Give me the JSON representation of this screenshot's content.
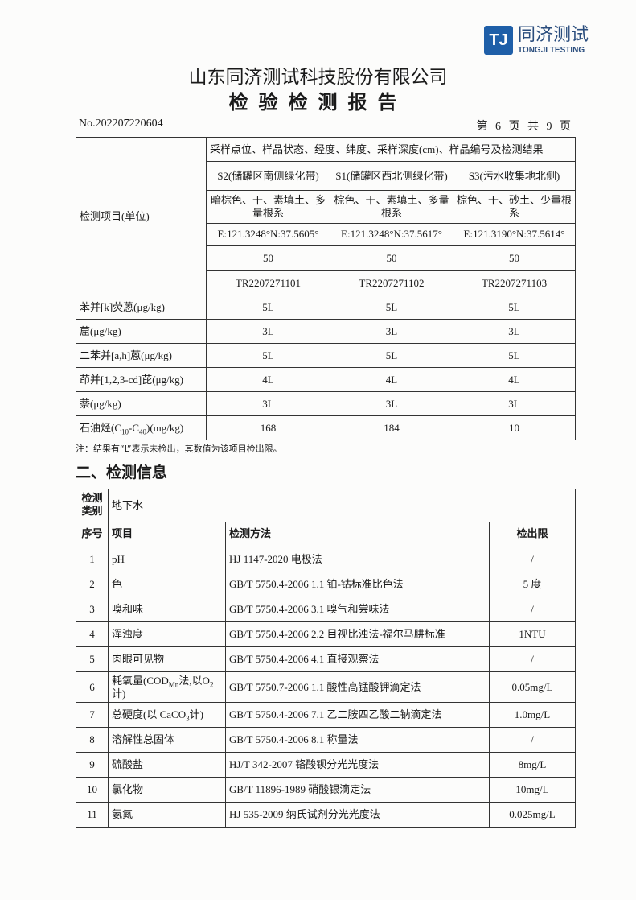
{
  "logo": {
    "mark": "TJ",
    "cn": "同济测试",
    "en": "TONGJI TESTING",
    "color": "#1f5fa8"
  },
  "header": {
    "company": "山东同济测试科技股份有限公司",
    "title": "检验检测报告",
    "report_no": "No.202207220604",
    "page": "第 6 页 共 9 页"
  },
  "table1": {
    "item_header": "检测项目(单位)",
    "group_header": "采样点位、样品状态、经度、纬度、采样深度(cm)、样品编号及检测结果",
    "samples": [
      {
        "site": "S2(储罐区南侧绿化带)",
        "state": "暗棕色、干、素填土、多量根系",
        "coord": "E:121.3248°N:37.5605°",
        "depth": "50",
        "id": "TR2207271101"
      },
      {
        "site": "S1(储罐区西北侧绿化带)",
        "state": "棕色、干、素填土、多量根系",
        "coord": "E:121.3248°N:37.5617°",
        "depth": "50",
        "id": "TR2207271102"
      },
      {
        "site": "S3(污水收集地北侧)",
        "state": "棕色、干、砂土、少量根系",
        "coord": "E:121.3190°N:37.5614°",
        "depth": "50",
        "id": "TR2207271103"
      }
    ],
    "rows": [
      {
        "item": [
          {
            "t": "苯并[k]荧蒽(μg/kg)"
          }
        ],
        "values": [
          "5L",
          "5L",
          "5L"
        ]
      },
      {
        "item": [
          {
            "t": "䓛(μg/kg)"
          }
        ],
        "values": [
          "3L",
          "3L",
          "3L"
        ]
      },
      {
        "item": [
          {
            "t": "二苯并[a,h]蒽(μg/kg)"
          }
        ],
        "values": [
          "5L",
          "5L",
          "5L"
        ]
      },
      {
        "item": [
          {
            "t": "茚并[1,2,3-cd]芘(μg/kg)"
          }
        ],
        "values": [
          "4L",
          "4L",
          "4L"
        ]
      },
      {
        "item": [
          {
            "t": "萘(μg/kg)"
          }
        ],
        "values": [
          "3L",
          "3L",
          "3L"
        ]
      },
      {
        "item": [
          {
            "t": "石油烃(C"
          },
          {
            "t": "10",
            "sub": true
          },
          {
            "t": "-C"
          },
          {
            "t": "40",
            "sub": true
          },
          {
            "t": ")(mg/kg)"
          }
        ],
        "values": [
          "168",
          "184",
          "10"
        ]
      }
    ],
    "note": "注：结果有“L”表示未检出，其数值为该项目检出限。"
  },
  "section2": {
    "title": "二、检测信息"
  },
  "table2": {
    "category_label": "检测类别",
    "category_value": "地下水",
    "columns": [
      "序号",
      "项目",
      "检测方法",
      "检出限"
    ],
    "rows": [
      {
        "no": "1",
        "item": [
          {
            "t": "pH"
          }
        ],
        "method": "HJ 1147-2020  电极法",
        "limit": "/"
      },
      {
        "no": "2",
        "item": [
          {
            "t": "色"
          }
        ],
        "method": "GB/T 5750.4-2006 1.1  铂-钴标准比色法",
        "limit": "5 度"
      },
      {
        "no": "3",
        "item": [
          {
            "t": "嗅和味"
          }
        ],
        "method": "GB/T 5750.4-2006 3.1  嗅气和尝味法",
        "limit": "/"
      },
      {
        "no": "4",
        "item": [
          {
            "t": "浑浊度"
          }
        ],
        "method": "GB/T 5750.4-2006 2.2  目视比浊法-福尔马肼标准",
        "limit": "1NTU"
      },
      {
        "no": "5",
        "item": [
          {
            "t": "肉眼可见物"
          }
        ],
        "method": "GB/T 5750.4-2006 4.1  直接观察法",
        "limit": "/"
      },
      {
        "no": "6",
        "item": [
          {
            "t": "耗氧量(COD"
          },
          {
            "t": "Mn",
            "sub": true
          },
          {
            "t": "法,以O"
          },
          {
            "t": "2",
            "sub": true
          },
          {
            "t": "计)"
          }
        ],
        "method": "GB/T 5750.7-2006 1.1  酸性高锰酸钾滴定法",
        "limit": "0.05mg/L"
      },
      {
        "no": "7",
        "item": [
          {
            "t": "总硬度(以 CaCO"
          },
          {
            "t": "3",
            "sub": true
          },
          {
            "t": "计)"
          }
        ],
        "method": "GB/T 5750.4-2006 7.1  乙二胺四乙酸二钠滴定法",
        "limit": "1.0mg/L"
      },
      {
        "no": "8",
        "item": [
          {
            "t": "溶解性总固体"
          }
        ],
        "method": "GB/T 5750.4-2006 8.1  称量法",
        "limit": "/"
      },
      {
        "no": "9",
        "item": [
          {
            "t": "硫酸盐"
          }
        ],
        "method": "HJ/T 342-2007  铬酸钡分光光度法",
        "limit": "8mg/L"
      },
      {
        "no": "10",
        "item": [
          {
            "t": "氯化物"
          }
        ],
        "method": "GB/T 11896-1989  硝酸银滴定法",
        "limit": "10mg/L"
      },
      {
        "no": "11",
        "item": [
          {
            "t": "氨氮"
          }
        ],
        "method": "HJ 535-2009  纳氏试剂分光光度法",
        "limit": "0.025mg/L"
      }
    ]
  }
}
